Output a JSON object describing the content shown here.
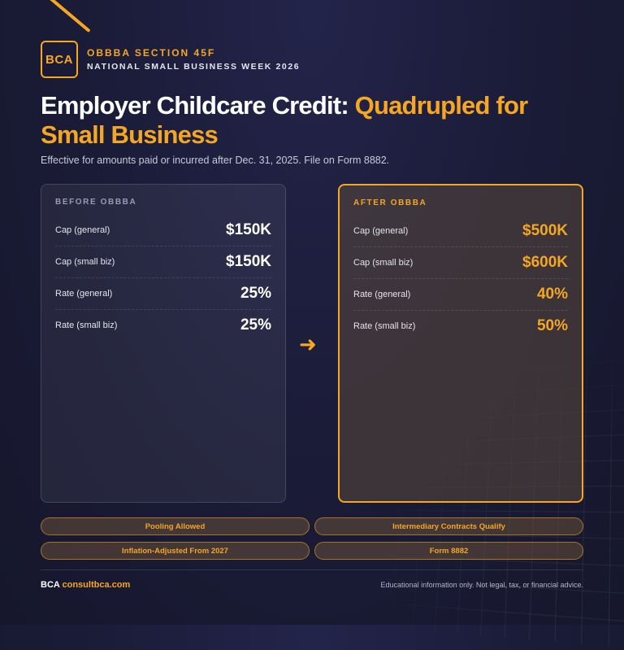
{
  "brand": {
    "logo_text": "BCA",
    "kicker": "OBBBA SECTION 45F",
    "event": "NATIONAL SMALL BUSINESS WEEK 2026"
  },
  "headline": {
    "main": "Employer Childcare Credit: ",
    "accent": "Quadrupled for Small Business"
  },
  "subtitle": "Effective for amounts paid or incurred after Dec. 31, 2025. File on Form 8882.",
  "before": {
    "label": "BEFORE OBBBA",
    "rows": [
      {
        "label": "Cap (general)",
        "value": "$150K"
      },
      {
        "label": "Cap (small biz)",
        "value": "$150K"
      },
      {
        "label": "Rate (general)",
        "value": "25%"
      },
      {
        "label": "Rate (small biz)",
        "value": "25%"
      }
    ]
  },
  "after": {
    "label": "AFTER OBBBA",
    "rows": [
      {
        "label": "Cap (general)",
        "value": "$500K"
      },
      {
        "label": "Cap (small biz)",
        "value": "$600K"
      },
      {
        "label": "Rate (general)",
        "value": "40%"
      },
      {
        "label": "Rate (small biz)",
        "value": "50%"
      }
    ]
  },
  "arrow_icon": "arrow-right-icon",
  "pills": [
    "Pooling Allowed",
    "Intermediary Contracts Qualify",
    "Inflation-Adjusted From 2027",
    "Form 8882"
  ],
  "footer": {
    "brand": "BCA",
    "url": "consultbca.com",
    "disclaimer": "Educational information only. Not legal, tax, or financial advice."
  },
  "colors": {
    "accent": "#f5a623",
    "background": "#1a1b36"
  }
}
